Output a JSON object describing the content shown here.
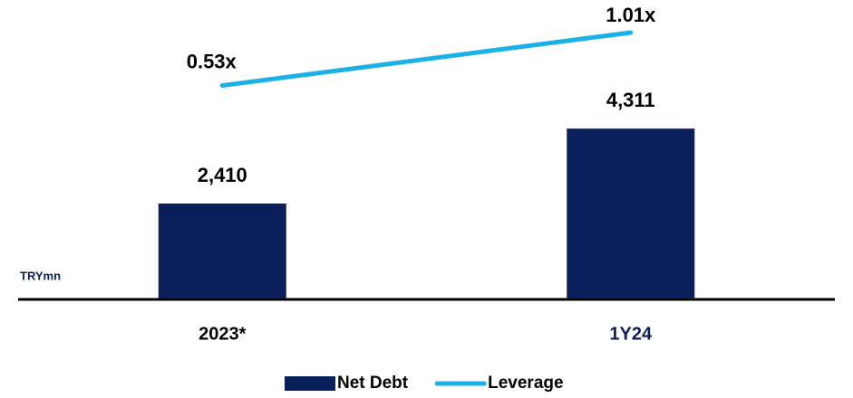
{
  "chart_data": {
    "type": "bar",
    "categories": [
      "2023*",
      "1Y24"
    ],
    "category_colors": [
      "#000000",
      "#0a1f5c"
    ],
    "series": [
      {
        "name": "Net Debt",
        "type": "bar",
        "color": "#0a1f5c",
        "values": [
          2410,
          4311
        ],
        "value_labels": [
          "2,410",
          "4,311"
        ]
      },
      {
        "name": "Leverage",
        "type": "line",
        "axis": "y2",
        "color": "#1ab0e8",
        "values": [
          0.53,
          1.01
        ],
        "value_labels": [
          "0.53x",
          "1.01x"
        ]
      }
    ],
    "ylim": [
      0,
      7000
    ],
    "y2lim": [
      -1.4,
      1.1
    ],
    "annotation": "TRYmn",
    "legend": "bottom"
  }
}
